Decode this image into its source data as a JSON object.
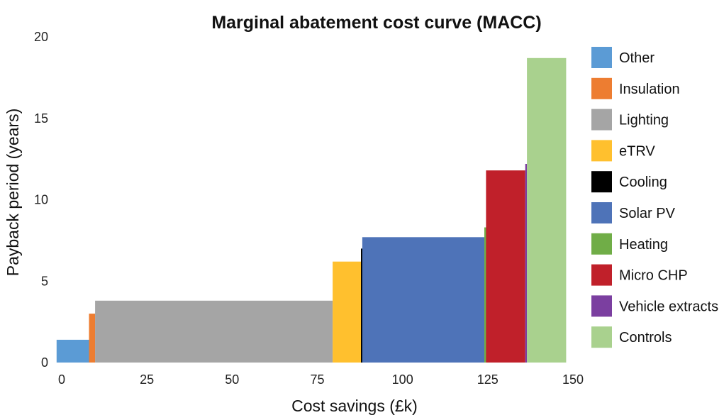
{
  "chart_data": {
    "type": "bar",
    "variant": "variable-width",
    "title": "Marginal abatement cost curve (MACC)",
    "xlabel": "Cost savings (£k)",
    "ylabel": "Payback period (years)",
    "xlim": [
      0,
      150
    ],
    "ylim": [
      0,
      20
    ],
    "x_ticks": [
      0,
      25,
      50,
      75,
      100,
      125,
      150
    ],
    "y_ticks": [
      0,
      5,
      10,
      15,
      20
    ],
    "grid": false,
    "legend_position": "right",
    "series": [
      {
        "name": "Other",
        "x_start": -1.5,
        "x_end": 8,
        "value": 1.4,
        "color": "#5b9bd5"
      },
      {
        "name": "Insulation",
        "x_start": 8,
        "x_end": 9.8,
        "value": 3.0,
        "color": "#ed7d31"
      },
      {
        "name": "Lighting",
        "x_start": 9.8,
        "x_end": 79.5,
        "value": 3.8,
        "color": "#a5a5a5"
      },
      {
        "name": "eTRV",
        "x_start": 79.5,
        "x_end": 87.8,
        "value": 6.2,
        "color": "#ffc02e"
      },
      {
        "name": "Cooling",
        "x_start": 87.8,
        "x_end": 88.2,
        "value": 7.0,
        "color": "#000000"
      },
      {
        "name": "Solar PV",
        "x_start": 88.2,
        "x_end": 124,
        "value": 7.7,
        "color": "#4e73b8"
      },
      {
        "name": "Heating",
        "x_start": 124,
        "x_end": 124.5,
        "value": 8.3,
        "color": "#70ad47"
      },
      {
        "name": "Micro CHP",
        "x_start": 124.5,
        "x_end": 136,
        "value": 11.8,
        "color": "#c0202a"
      },
      {
        "name": "Vehicle extracts",
        "x_start": 136,
        "x_end": 136.5,
        "value": 12.2,
        "color": "#7b3fa0"
      },
      {
        "name": "Controls",
        "x_start": 136.5,
        "x_end": 148,
        "value": 18.7,
        "color": "#a9d18e"
      }
    ]
  }
}
